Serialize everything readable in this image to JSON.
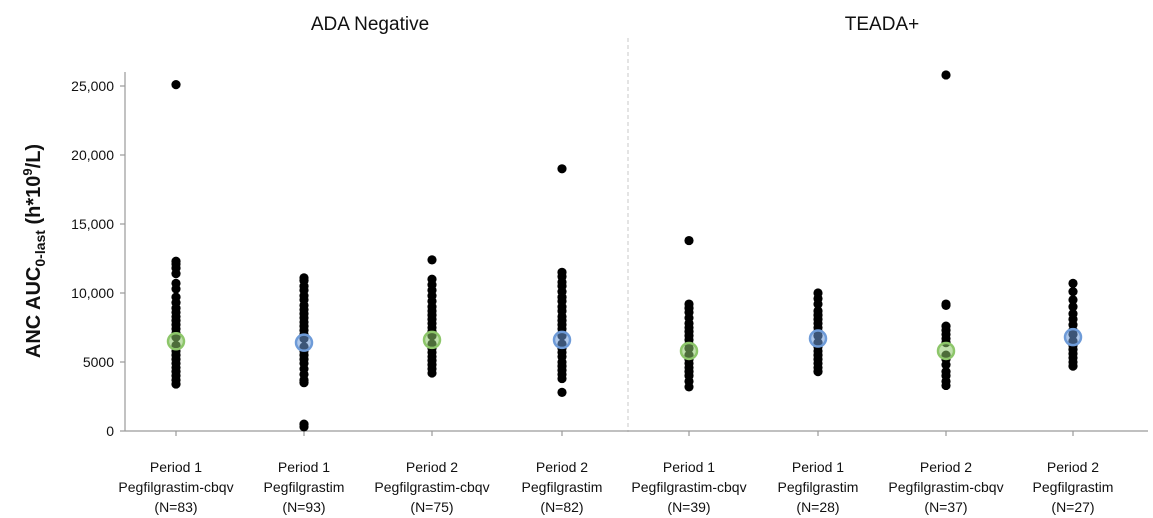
{
  "chart_data": {
    "type": "scatter",
    "panels": [
      {
        "title": "ADA Negative",
        "category_indices": [
          0,
          1,
          2,
          3
        ]
      },
      {
        "title": "TEADA+",
        "category_indices": [
          4,
          5,
          6,
          7
        ]
      }
    ],
    "ylabel": {
      "main": "ANC AUC",
      "sub": "0-last",
      "unit_pre": "(h*10",
      "unit_sup": "9",
      "unit_post": "/L)"
    },
    "ylim": [
      0,
      25000
    ],
    "yticks": [
      0,
      5000,
      10000,
      15000,
      20000,
      25000
    ],
    "ytick_labels": [
      "0",
      "5000",
      "10,000",
      "15,000",
      "20,000",
      "25,000"
    ],
    "grid": false,
    "mean_colors": {
      "biosimilar": "#8dc66a",
      "reference": "#6e9bd8"
    },
    "categories": [
      {
        "line1": "Period 1",
        "line2": "Pegfilgrastim-cbqv",
        "line3": "(N=83)",
        "product": "biosimilar",
        "mean": 6500,
        "values": [
          25100,
          12300,
          12100,
          11800,
          11400,
          10700,
          10300,
          9700,
          9300,
          8900,
          8600,
          8300,
          8000,
          7700,
          7400,
          7100,
          6800,
          6200,
          5800,
          5500,
          5200,
          4900,
          4600,
          4300,
          4000,
          3700,
          3400
        ]
      },
      {
        "line1": "Period 1",
        "line2": "Pegfilgrastim",
        "line3": "(N=93)",
        "product": "reference",
        "mean": 6400,
        "values": [
          11100,
          10900,
          10500,
          10200,
          9800,
          9500,
          9100,
          8800,
          8500,
          8200,
          7900,
          7600,
          7300,
          7000,
          6700,
          6100,
          5800,
          5500,
          5200,
          4900,
          4500,
          4100,
          3700,
          3500,
          500,
          300
        ]
      },
      {
        "line1": "Period 2",
        "line2": "Pegfilgrastim-cbqv",
        "line3": "(N=75)",
        "product": "biosimilar",
        "mean": 6600,
        "values": [
          12400,
          11000,
          10600,
          10200,
          9800,
          9400,
          9000,
          8700,
          8400,
          8100,
          7800,
          7500,
          7200,
          6900,
          6300,
          6000,
          5700,
          5400,
          5100,
          4800,
          4500,
          4200
        ]
      },
      {
        "line1": "Period 2",
        "line2": "Pegfilgrastim",
        "line3": "(N=82)",
        "product": "reference",
        "mean": 6600,
        "values": [
          19000,
          11500,
          11200,
          10800,
          10500,
          10100,
          9700,
          9400,
          9000,
          8700,
          8300,
          8000,
          7700,
          7400,
          7100,
          6900,
          6300,
          6000,
          5700,
          5400,
          5000,
          4700,
          4400,
          4100,
          3800,
          2800
        ]
      },
      {
        "line1": "Period 1",
        "line2": "Pegfilgrastim-cbqv",
        "line3": "(N=39)",
        "product": "biosimilar",
        "mean": 5800,
        "values": [
          13800,
          9200,
          8900,
          8600,
          8200,
          7800,
          7500,
          7200,
          6900,
          6600,
          6300,
          6000,
          5500,
          5200,
          4900,
          4600,
          4300,
          4000,
          3600,
          3200
        ]
      },
      {
        "line1": "Period 1",
        "line2": "Pegfilgrastim",
        "line3": "(N=28)",
        "product": "reference",
        "mean": 6700,
        "values": [
          10000,
          9600,
          9200,
          8700,
          8400,
          8100,
          7800,
          7500,
          7200,
          6900,
          6400,
          6100,
          5800,
          5500,
          5200,
          4900,
          4600,
          4300
        ]
      },
      {
        "line1": "Period 2",
        "line2": "Pegfilgrastim-cbqv",
        "line3": "(N=37)",
        "product": "biosimilar",
        "mean": 5800,
        "values": [
          25800,
          9200,
          9100,
          7600,
          7300,
          7000,
          6700,
          6400,
          5500,
          5200,
          4800,
          4300,
          4000,
          3600,
          3300
        ]
      },
      {
        "line1": "Period 2",
        "line2": "Pegfilgrastim",
        "line3": "(N=27)",
        "product": "reference",
        "mean": 6800,
        "values": [
          10700,
          10100,
          9500,
          9000,
          8500,
          8100,
          7700,
          7300,
          7000,
          6500,
          6200,
          5900,
          5600,
          5300,
          5000,
          4700
        ]
      }
    ]
  }
}
